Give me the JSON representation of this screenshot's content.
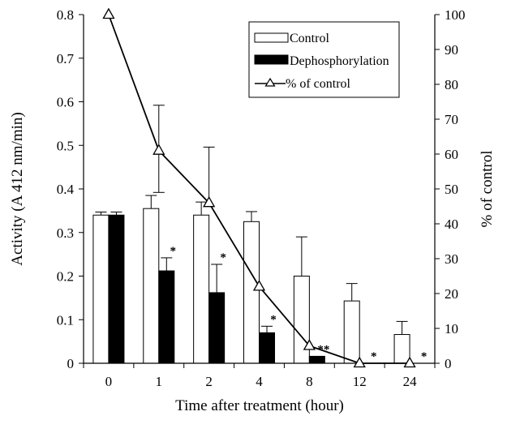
{
  "chart_data": {
    "type": "bar",
    "categories": [
      "0",
      "1",
      "2",
      "4",
      "8",
      "12",
      "24"
    ],
    "xlabel": "Time after treatment (hour)",
    "ylabel": "Activity (A 412 nm/min)",
    "y2label": "% of control",
    "ylim": [
      0,
      0.8
    ],
    "yticks": [
      "0",
      "0.1",
      "0.2",
      "0.3",
      "0.4",
      "0.5",
      "0.6",
      "0.7",
      "0.8"
    ],
    "y2lim": [
      0,
      100
    ],
    "y2ticks": [
      "0",
      "10",
      "20",
      "30",
      "40",
      "50",
      "60",
      "70",
      "80",
      "90",
      "100"
    ],
    "grid": false,
    "legend_position": "top-right",
    "series": [
      {
        "name": "Control",
        "kind": "bar",
        "fill": "#ffffff",
        "values": [
          0.34,
          0.355,
          0.34,
          0.325,
          0.2,
          0.143,
          0.066
        ],
        "errors": [
          0.007,
          0.03,
          0.03,
          0.023,
          0.09,
          0.04,
          0.03
        ],
        "annotations": [
          "",
          "",
          "",
          "",
          "",
          "",
          ""
        ]
      },
      {
        "name": "Dephosphorylation",
        "kind": "bar",
        "fill": "#000000",
        "values": [
          0.34,
          0.212,
          0.162,
          0.07,
          0.016,
          0.0,
          0.0
        ],
        "errors": [
          0.007,
          0.03,
          0.065,
          0.015,
          0.0,
          0.0,
          0.0
        ],
        "annotations": [
          "",
          "*",
          "*",
          "*",
          "**",
          "*",
          "*"
        ]
      },
      {
        "name": "% of control",
        "kind": "line",
        "axis": "right",
        "marker": "triangle",
        "values": [
          100,
          61,
          46,
          22,
          5,
          0,
          0
        ],
        "errors_up": [
          0,
          13,
          16,
          0,
          0,
          0,
          0
        ],
        "errors_down": [
          0,
          12,
          0,
          0,
          0,
          0,
          0
        ]
      }
    ]
  }
}
